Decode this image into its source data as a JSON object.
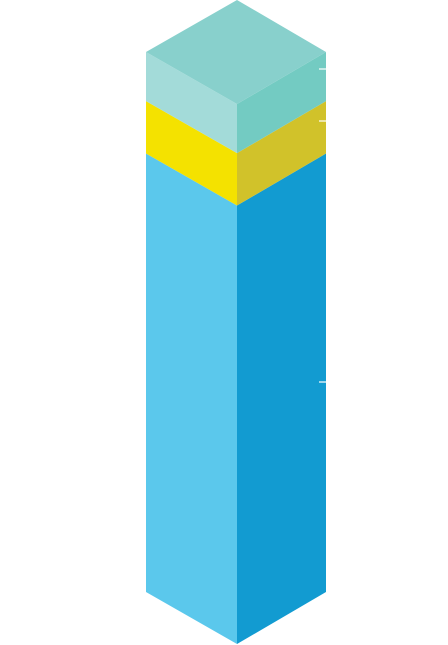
{
  "graphic": {
    "type": "isometric-stacked-column",
    "segments": [
      {
        "key": "main",
        "share": 0.812,
        "colors": {
          "front": "#5bc8ec",
          "side": "#129bd1",
          "top": "#7fd6f0"
        }
      },
      {
        "key": "middle",
        "share": 0.097,
        "colors": {
          "front": "#f4e200",
          "side": "#d1c22a",
          "top": "#f7ea4a"
        }
      },
      {
        "key": "top",
        "share": 0.091,
        "colors": {
          "front": "#a3dbd9",
          "side": "#73cbc2",
          "top": "#88d0cc"
        }
      }
    ],
    "tick_color": "#ffffff"
  }
}
